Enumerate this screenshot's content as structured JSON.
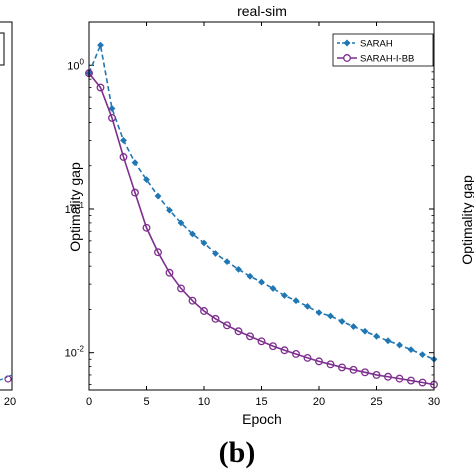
{
  "caption": "(b)",
  "chart_data": {
    "type": "line",
    "title": "real-sim",
    "xlabel": "Epoch",
    "ylabel": "Optimality gap",
    "xlim": [
      0,
      30
    ],
    "ylim": [
      0.0055,
      2.0
    ],
    "yscale": "log",
    "x_ticks": [
      "0",
      "5",
      "10",
      "15",
      "20",
      "25",
      "30"
    ],
    "y_tick_labels": [
      {
        "base": "10",
        "exp": "0",
        "value": 1
      },
      {
        "base": "10",
        "exp": "-1",
        "value": 0.1
      },
      {
        "base": "10",
        "exp": "-2",
        "value": 0.01
      }
    ],
    "legend_position": "top-right",
    "x": [
      0,
      1,
      2,
      3,
      4,
      5,
      6,
      7,
      8,
      9,
      10,
      11,
      12,
      13,
      14,
      15,
      16,
      17,
      18,
      19,
      20,
      21,
      22,
      23,
      24,
      25,
      26,
      27,
      28,
      29,
      30
    ],
    "series": [
      {
        "name": "SARAH",
        "color": "#1f77b4",
        "line_style": "dashed",
        "marker": "diamond",
        "values": [
          0.88,
          1.38,
          0.5,
          0.3,
          0.21,
          0.16,
          0.123,
          0.098,
          0.08,
          0.067,
          0.058,
          0.049,
          0.043,
          0.038,
          0.034,
          0.031,
          0.028,
          0.025,
          0.023,
          0.021,
          0.019,
          0.018,
          0.0165,
          0.0152,
          0.0141,
          0.013,
          0.0121,
          0.0113,
          0.0105,
          0.0097,
          0.009
        ]
      },
      {
        "name": "SARAH-I-BB",
        "color": "#7e2f8e",
        "line_style": "solid",
        "marker": "circle",
        "values": [
          0.88,
          0.7,
          0.43,
          0.23,
          0.13,
          0.074,
          0.05,
          0.036,
          0.028,
          0.023,
          0.0195,
          0.0172,
          0.0155,
          0.0141,
          0.013,
          0.012,
          0.0111,
          0.0104,
          0.0098,
          0.0092,
          0.0087,
          0.0083,
          0.0079,
          0.0076,
          0.0073,
          0.007,
          0.0068,
          0.0066,
          0.0064,
          0.0062,
          0.006
        ]
      }
    ]
  },
  "left_panel": {
    "x_tick_label": "20"
  },
  "right_panel": {
    "ylabel": "Optimality gap"
  }
}
